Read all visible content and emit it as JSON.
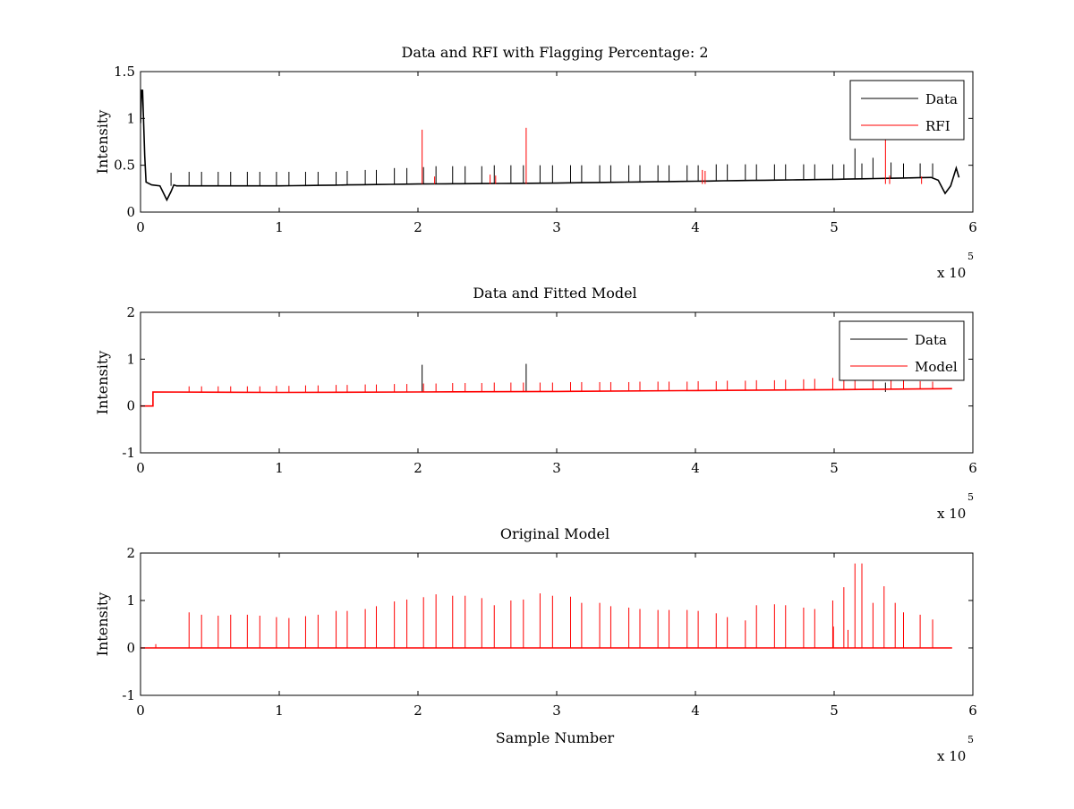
{
  "chart_data": [
    {
      "type": "line",
      "title": "Data and RFI with Flagging Percentage: 2",
      "xlabel": "",
      "ylabel": "Intensity",
      "xlim": [
        0,
        600000
      ],
      "ylim": [
        0,
        1.5
      ],
      "xticks": [
        0,
        1,
        2,
        3,
        4,
        5,
        6
      ],
      "yticks": [
        0,
        0.5,
        1,
        1.5
      ],
      "x_scale_label": "x 10",
      "x_scale_exp": "5",
      "grid": false,
      "legend_position": "top-right",
      "series": [
        {
          "name": "Data",
          "color": "#000000",
          "baseline": [
            [
              0,
              0.3
            ],
            [
              10000,
              0.28
            ],
            [
              100000,
              0.28
            ],
            [
              200000,
              0.3
            ],
            [
              300000,
              0.31
            ],
            [
              400000,
              0.33
            ],
            [
              500000,
              0.35
            ],
            [
              570000,
              0.37
            ],
            [
              585000,
              0.37
            ]
          ],
          "features": [
            {
              "x": 1000,
              "y": 1.3,
              "note": "initial peak"
            },
            {
              "x": 19000,
              "y": 0.13,
              "note": "dip"
            },
            {
              "x": 580000,
              "y": 0.2,
              "note": "end dip"
            }
          ],
          "spikes": [
            [
              22000,
              0.42
            ],
            [
              35000,
              0.43
            ],
            [
              44000,
              0.43
            ],
            [
              56000,
              0.43
            ],
            [
              65000,
              0.43
            ],
            [
              77000,
              0.43
            ],
            [
              86000,
              0.43
            ],
            [
              98000,
              0.43
            ],
            [
              107000,
              0.43
            ],
            [
              119000,
              0.43
            ],
            [
              128000,
              0.43
            ],
            [
              141000,
              0.43
            ],
            [
              149000,
              0.44
            ],
            [
              162000,
              0.45
            ],
            [
              170000,
              0.45
            ],
            [
              183000,
              0.47
            ],
            [
              192000,
              0.47
            ],
            [
              204000,
              0.48
            ],
            [
              213000,
              0.49
            ],
            [
              225000,
              0.49
            ],
            [
              234000,
              0.49
            ],
            [
              246000,
              0.49
            ],
            [
              255000,
              0.5
            ],
            [
              267000,
              0.5
            ],
            [
              276000,
              0.5
            ],
            [
              288000,
              0.5
            ],
            [
              297000,
              0.5
            ],
            [
              310000,
              0.5
            ],
            [
              318000,
              0.5
            ],
            [
              331000,
              0.5
            ],
            [
              339000,
              0.5
            ],
            [
              352000,
              0.5
            ],
            [
              360000,
              0.5
            ],
            [
              373000,
              0.5
            ],
            [
              381000,
              0.5
            ],
            [
              394000,
              0.5
            ],
            [
              402000,
              0.5
            ],
            [
              415000,
              0.51
            ],
            [
              423000,
              0.51
            ],
            [
              436000,
              0.51
            ],
            [
              444000,
              0.51
            ],
            [
              457000,
              0.51
            ],
            [
              465000,
              0.51
            ],
            [
              478000,
              0.51
            ],
            [
              486000,
              0.51
            ],
            [
              499000,
              0.51
            ],
            [
              507000,
              0.51
            ],
            [
              515000,
              0.68
            ],
            [
              520000,
              0.52
            ],
            [
              528000,
              0.58
            ],
            [
              541000,
              0.53
            ],
            [
              550000,
              0.52
            ],
            [
              562000,
              0.52
            ],
            [
              571000,
              0.52
            ]
          ]
        },
        {
          "name": "RFI",
          "color": "#ff0000",
          "spikes": [
            [
              203000,
              0.88
            ],
            [
              212000,
              0.38
            ],
            [
              252000,
              0.4
            ],
            [
              256000,
              0.39
            ],
            [
              278000,
              0.9
            ],
            [
              405000,
              0.45
            ],
            [
              407000,
              0.44
            ],
            [
              537000,
              0.78
            ],
            [
              540000,
              0.39
            ],
            [
              563000,
              0.38
            ]
          ]
        }
      ]
    },
    {
      "type": "line",
      "title": "Data and Fitted Model",
      "xlabel": "",
      "ylabel": "Intensity",
      "xlim": [
        0,
        600000
      ],
      "ylim": [
        -1,
        2
      ],
      "xticks": [
        0,
        1,
        2,
        3,
        4,
        5,
        6
      ],
      "yticks": [
        -1,
        0,
        1,
        2
      ],
      "x_scale_label": "x 10",
      "x_scale_exp": "5",
      "grid": false,
      "legend_position": "top-right",
      "series": [
        {
          "name": "Data",
          "color": "#000000",
          "spikes": [
            [
              203000,
              0.88
            ],
            [
              278000,
              0.9
            ],
            [
              537000,
              0.5
            ]
          ]
        },
        {
          "name": "Model",
          "color": "#ff0000",
          "baseline": [
            [
              0,
              0.0
            ],
            [
              9000,
              0.0
            ],
            [
              9000,
              0.3
            ],
            [
              100000,
              0.29
            ],
            [
              200000,
              0.3
            ],
            [
              300000,
              0.31
            ],
            [
              400000,
              0.33
            ],
            [
              500000,
              0.35
            ],
            [
              585000,
              0.37
            ]
          ],
          "spikes": [
            [
              35000,
              0.42
            ],
            [
              44000,
              0.42
            ],
            [
              56000,
              0.42
            ],
            [
              65000,
              0.42
            ],
            [
              77000,
              0.42
            ],
            [
              86000,
              0.42
            ],
            [
              98000,
              0.43
            ],
            [
              107000,
              0.43
            ],
            [
              119000,
              0.44
            ],
            [
              128000,
              0.44
            ],
            [
              141000,
              0.45
            ],
            [
              149000,
              0.45
            ],
            [
              162000,
              0.46
            ],
            [
              170000,
              0.46
            ],
            [
              183000,
              0.47
            ],
            [
              192000,
              0.47
            ],
            [
              204000,
              0.48
            ],
            [
              213000,
              0.48
            ],
            [
              225000,
              0.49
            ],
            [
              234000,
              0.49
            ],
            [
              246000,
              0.49
            ],
            [
              255000,
              0.5
            ],
            [
              267000,
              0.5
            ],
            [
              276000,
              0.5
            ],
            [
              288000,
              0.5
            ],
            [
              297000,
              0.5
            ],
            [
              310000,
              0.51
            ],
            [
              318000,
              0.51
            ],
            [
              331000,
              0.51
            ],
            [
              339000,
              0.51
            ],
            [
              352000,
              0.51
            ],
            [
              360000,
              0.52
            ],
            [
              373000,
              0.52
            ],
            [
              381000,
              0.52
            ],
            [
              394000,
              0.52
            ],
            [
              402000,
              0.53
            ],
            [
              415000,
              0.53
            ],
            [
              423000,
              0.54
            ],
            [
              436000,
              0.54
            ],
            [
              444000,
              0.55
            ],
            [
              457000,
              0.55
            ],
            [
              465000,
              0.56
            ],
            [
              478000,
              0.57
            ],
            [
              486000,
              0.58
            ],
            [
              499000,
              0.6
            ],
            [
              507000,
              0.55
            ],
            [
              515000,
              0.56
            ],
            [
              528000,
              0.58
            ],
            [
              541000,
              0.55
            ],
            [
              550000,
              0.54
            ],
            [
              562000,
              0.53
            ],
            [
              571000,
              0.52
            ]
          ]
        }
      ]
    },
    {
      "type": "line",
      "title": "Original Model",
      "xlabel": "Sample Number",
      "ylabel": "Intensity",
      "xlim": [
        0,
        600000
      ],
      "ylim": [
        -1,
        2
      ],
      "xticks": [
        0,
        1,
        2,
        3,
        4,
        5,
        6
      ],
      "yticks": [
        -1,
        0,
        1,
        2
      ],
      "x_scale_label": "x 10",
      "x_scale_exp": "5",
      "grid": false,
      "series": [
        {
          "color": "#ff0000",
          "baseline": [
            [
              0,
              0.0
            ],
            [
              585000,
              0.0
            ]
          ],
          "spikes": [
            [
              11000,
              0.08
            ],
            [
              35000,
              0.75
            ],
            [
              44000,
              0.7
            ],
            [
              56000,
              0.68
            ],
            [
              65000,
              0.7
            ],
            [
              77000,
              0.7
            ],
            [
              86000,
              0.68
            ],
            [
              98000,
              0.65
            ],
            [
              107000,
              0.63
            ],
            [
              119000,
              0.67
            ],
            [
              128000,
              0.7
            ],
            [
              141000,
              0.78
            ],
            [
              149000,
              0.78
            ],
            [
              162000,
              0.82
            ],
            [
              170000,
              0.88
            ],
            [
              183000,
              0.98
            ],
            [
              192000,
              1.02
            ],
            [
              204000,
              1.07
            ],
            [
              213000,
              1.13
            ],
            [
              225000,
              1.1
            ],
            [
              234000,
              1.1
            ],
            [
              246000,
              1.05
            ],
            [
              255000,
              0.9
            ],
            [
              267000,
              1.0
            ],
            [
              276000,
              1.02
            ],
            [
              288000,
              1.15
            ],
            [
              297000,
              1.1
            ],
            [
              310000,
              1.08
            ],
            [
              318000,
              0.95
            ],
            [
              331000,
              0.95
            ],
            [
              339000,
              0.88
            ],
            [
              352000,
              0.85
            ],
            [
              360000,
              0.82
            ],
            [
              373000,
              0.8
            ],
            [
              381000,
              0.8
            ],
            [
              394000,
              0.8
            ],
            [
              402000,
              0.78
            ],
            [
              415000,
              0.73
            ],
            [
              423000,
              0.65
            ],
            [
              436000,
              0.58
            ],
            [
              444000,
              0.9
            ],
            [
              457000,
              0.92
            ],
            [
              465000,
              0.9
            ],
            [
              478000,
              0.85
            ],
            [
              486000,
              0.82
            ],
            [
              499000,
              1.0
            ],
            [
              507000,
              1.28
            ],
            [
              515000,
              1.78
            ],
            [
              520000,
              1.78
            ],
            [
              528000,
              0.95
            ],
            [
              536000,
              1.3
            ],
            [
              544000,
              0.95
            ],
            [
              550000,
              0.75
            ],
            [
              562000,
              0.7
            ],
            [
              571000,
              0.6
            ],
            [
              499500,
              0.45
            ],
            [
              510000,
              0.38
            ]
          ]
        }
      ]
    }
  ]
}
